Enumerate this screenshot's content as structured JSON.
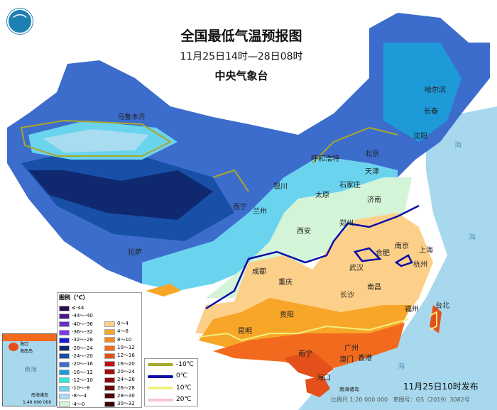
{
  "header": {
    "title": "全国最低气温预报图",
    "period": "11月25日14时—28日08时",
    "issuer": "中央气象台"
  },
  "logo": {
    "icon": "cma-logo-icon"
  },
  "cities": [
    "乌鲁木齐",
    "哈尔滨",
    "长春",
    "沈阳",
    "北京",
    "天津",
    "呼和浩特",
    "银川",
    "太原",
    "石家庄",
    "济南",
    "西宁",
    "兰州",
    "西安",
    "郑州",
    "拉萨",
    "成都",
    "重庆",
    "合肥",
    "南京",
    "上海",
    "武汉",
    "杭州",
    "长沙",
    "南昌",
    "贵阳",
    "福州",
    "台北",
    "昆明",
    "南宁",
    "广州",
    "澳门",
    "香港",
    "海口"
  ],
  "seas": [
    "海",
    "海",
    "海",
    "南海诸岛"
  ],
  "legend": {
    "title": "图例（℃）",
    "cold": [
      {
        "label": "≤-44",
        "color": "#2a0a4f"
      },
      {
        "label": "-44～-40",
        "color": "#4b1687"
      },
      {
        "label": "-40～-36",
        "color": "#6a2fc4"
      },
      {
        "label": "-36～-32",
        "color": "#7a3ae8"
      },
      {
        "label": "-32～-28",
        "color": "#1a1ad0"
      },
      {
        "label": "-28～-24",
        "color": "#0f2870"
      },
      {
        "label": "-24～-20",
        "color": "#1850a8"
      },
      {
        "label": "-20～-16",
        "color": "#3c6ccc"
      },
      {
        "label": "-16～-12",
        "color": "#1e9ad8"
      },
      {
        "label": "-12～-10",
        "color": "#30e8d8"
      },
      {
        "label": "-10～-8",
        "color": "#6ad4ef"
      },
      {
        "label": "-8～-4",
        "color": "#a8dcf0"
      },
      {
        "label": "-4～0",
        "color": "#d4f4d8"
      }
    ],
    "warm": [
      {
        "label": "0～4",
        "color": "#fdd08a"
      },
      {
        "label": "4～8",
        "color": "#f8a628"
      },
      {
        "label": "8～10",
        "color": "#f78a20"
      },
      {
        "label": "10～12",
        "color": "#f26a1e"
      },
      {
        "label": "12～16",
        "color": "#e5501a"
      },
      {
        "label": "16～20",
        "color": "#c01010"
      },
      {
        "label": "20～24",
        "color": "#a00e0e"
      },
      {
        "label": "24～26",
        "color": "#8a0808"
      },
      {
        "label": "26～28",
        "color": "#6e0606"
      },
      {
        "label": "28～30",
        "color": "#520404"
      },
      {
        "label": "30～32",
        "color": "#3a0202"
      }
    ],
    "isolines": [
      {
        "label": "-10℃",
        "color": "#a8a82a"
      },
      {
        "label": "0℃",
        "color": "#0a0aa8"
      },
      {
        "label": "10℃",
        "color": "#f0f080"
      },
      {
        "label": "20℃",
        "color": "#f8c0dc"
      }
    ]
  },
  "inset": {
    "island": "海南岛",
    "city": "海口",
    "sea": "南海",
    "title": "南海诸岛",
    "scale": "1:40 000 000"
  },
  "footer": {
    "issued": "11月25日10时发布",
    "scale": "比例尺 1:20 000 000",
    "approval": "审图号：GS（2019）3082号"
  }
}
